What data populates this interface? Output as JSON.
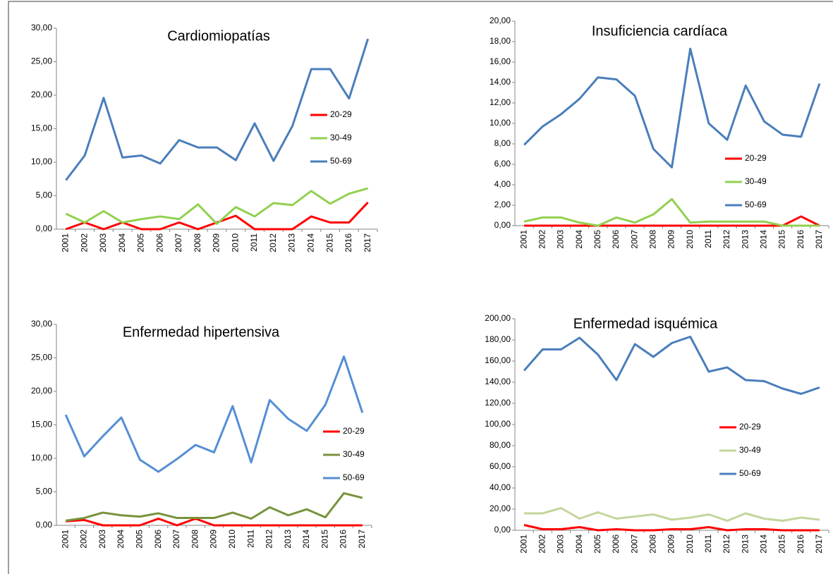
{
  "chart_data": [
    {
      "type": "line",
      "title": "Cardiomiopatías",
      "categories": [
        "2001",
        "2002",
        "2003",
        "2004",
        "2005",
        "2006",
        "2007",
        "2008",
        "2009",
        "2010",
        "2011",
        "2012",
        "2013",
        "2014",
        "2015",
        "2016",
        "2017"
      ],
      "series": [
        {
          "name": "20-29",
          "color": "#ff0000",
          "values": [
            0,
            1.0,
            0,
            1.0,
            0,
            0,
            1.0,
            0,
            1.0,
            2.0,
            0,
            0,
            0,
            1.9,
            1.0,
            1.0,
            4.0
          ]
        },
        {
          "name": "30-49",
          "color": "#92d050",
          "values": [
            2.3,
            1.0,
            2.7,
            1.0,
            1.5,
            1.9,
            1.5,
            3.7,
            0.8,
            3.3,
            1.9,
            3.9,
            3.6,
            5.7,
            3.8,
            5.3,
            6.1
          ]
        },
        {
          "name": "50-69",
          "color": "#4a7ebb",
          "values": [
            7.3,
            11.0,
            19.6,
            10.7,
            11.0,
            9.8,
            13.3,
            12.2,
            12.2,
            10.3,
            15.8,
            10.2,
            15.4,
            23.9,
            23.9,
            19.5,
            28.4
          ]
        }
      ],
      "ylim": [
        0,
        30
      ],
      "yticks": [
        {
          "value": 0,
          "label": "0,00"
        },
        {
          "value": 5,
          "label": "5,00"
        },
        {
          "value": 10,
          "label": "10,00"
        },
        {
          "value": 15,
          "label": "15,00"
        },
        {
          "value": 20,
          "label": "20,00"
        },
        {
          "value": 25,
          "label": "25,00"
        },
        {
          "value": 30,
          "label": "30,00"
        }
      ]
    },
    {
      "type": "line",
      "title": "Insuficiencia cardíaca",
      "categories": [
        "2001",
        "2002",
        "2003",
        "2004",
        "2005",
        "2006",
        "2007",
        "2008",
        "2009",
        "2010",
        "2011",
        "2012",
        "2013",
        "2014",
        "2015",
        "2016",
        "2017"
      ],
      "series": [
        {
          "name": "20-29",
          "color": "#ff0000",
          "values": [
            0,
            0,
            0,
            0,
            0,
            0,
            0,
            0,
            0,
            0,
            0,
            0,
            0,
            0,
            0,
            0.9,
            0
          ]
        },
        {
          "name": "30-49",
          "color": "#92d050",
          "values": [
            0.4,
            0.8,
            0.8,
            0.3,
            0,
            0.8,
            0.3,
            1.1,
            2.6,
            0.3,
            0.4,
            0.4,
            0.4,
            0.4,
            0,
            0,
            0
          ]
        },
        {
          "name": "50-69",
          "color": "#4a7ebb",
          "values": [
            7.9,
            9.7,
            10.9,
            12.4,
            14.5,
            14.3,
            12.7,
            7.5,
            5.7,
            17.3,
            10.0,
            8.4,
            13.7,
            10.2,
            8.9,
            8.7,
            13.9
          ]
        }
      ],
      "ylim": [
        0,
        20
      ],
      "yticks": [
        {
          "value": 0,
          "label": "0,00"
        },
        {
          "value": 2,
          "label": "2,00"
        },
        {
          "value": 4,
          "label": "4,00"
        },
        {
          "value": 6,
          "label": "6,00"
        },
        {
          "value": 8,
          "label": "8,00"
        },
        {
          "value": 10,
          "label": "10,00"
        },
        {
          "value": 12,
          "label": "12,00"
        },
        {
          "value": 14,
          "label": "14,00"
        },
        {
          "value": 16,
          "label": "16,00"
        },
        {
          "value": 18,
          "label": "18,00"
        },
        {
          "value": 20,
          "label": "20,00"
        }
      ]
    },
    {
      "type": "line",
      "title": "Enfermedad hipertensiva",
      "categories": [
        "2001",
        "2002",
        "2003",
        "2004",
        "2005",
        "2006",
        "2007",
        "2008",
        "2009",
        "2010",
        "2011",
        "2012",
        "2013",
        "2014",
        "2015",
        "2016",
        "2017"
      ],
      "series": [
        {
          "name": "20-29",
          "color": "#ff0000",
          "values": [
            0.6,
            0.8,
            0,
            0,
            0,
            1.0,
            0,
            1.0,
            0,
            0,
            0,
            0,
            0,
            0,
            0,
            0,
            0
          ]
        },
        {
          "name": "30-49",
          "color": "#77933c",
          "values": [
            0.7,
            1.1,
            1.9,
            1.5,
            1.3,
            1.8,
            1.1,
            1.1,
            1.1,
            1.9,
            1.0,
            2.7,
            1.5,
            2.4,
            1.2,
            4.8,
            4.1
          ]
        },
        {
          "name": "50-69",
          "color": "#558ed5",
          "values": [
            16.5,
            10.3,
            13.3,
            16.1,
            9.8,
            8.0,
            9.9,
            12.0,
            10.9,
            17.8,
            9.4,
            18.7,
            15.9,
            14.1,
            18.0,
            25.2,
            16.8
          ]
        }
      ],
      "ylim": [
        0,
        30
      ],
      "yticks": [
        {
          "value": 0,
          "label": "0,00"
        },
        {
          "value": 5,
          "label": "5,00"
        },
        {
          "value": 10,
          "label": "10,00"
        },
        {
          "value": 15,
          "label": "15,00"
        },
        {
          "value": 20,
          "label": "20,00"
        },
        {
          "value": 25,
          "label": "25,00"
        },
        {
          "value": 30,
          "label": "30,00"
        }
      ]
    },
    {
      "type": "line",
      "title": "Enfermedad isquémica",
      "categories": [
        "2001",
        "2002",
        "2003",
        "2004",
        "2005",
        "2006",
        "2007",
        "2008",
        "2009",
        "2010",
        "2011",
        "2012",
        "2013",
        "2014",
        "2015",
        "2016",
        "2017"
      ],
      "series": [
        {
          "name": "20-29",
          "color": "#ff0000",
          "values": [
            5,
            1,
            1,
            3,
            0,
            1,
            0,
            0,
            1,
            1,
            3,
            0,
            1,
            1,
            0,
            0,
            0
          ]
        },
        {
          "name": "30-49",
          "color": "#c3d69b",
          "values": [
            16,
            16,
            21,
            11,
            17,
            11,
            13,
            15,
            10,
            12,
            15,
            9,
            16,
            11,
            9,
            12,
            10
          ]
        },
        {
          "name": "50-69",
          "color": "#4a7ebb",
          "values": [
            151,
            171,
            171,
            182,
            166,
            142,
            176,
            164,
            177,
            183,
            150,
            154,
            142,
            141,
            134,
            129,
            135
          ]
        }
      ],
      "ylim": [
        0,
        200
      ],
      "yticks": [
        {
          "value": 0,
          "label": "0,00"
        },
        {
          "value": 20,
          "label": "20,00"
        },
        {
          "value": 40,
          "label": "40,00"
        },
        {
          "value": 60,
          "label": "60,00"
        },
        {
          "value": 80,
          "label": "80,00"
        },
        {
          "value": 100,
          "label": "100,00"
        },
        {
          "value": 120,
          "label": "120,00"
        },
        {
          "value": 140,
          "label": "140,00"
        },
        {
          "value": 160,
          "label": "160,00"
        },
        {
          "value": 180,
          "label": "180,00"
        },
        {
          "value": 200,
          "label": "200,00"
        }
      ]
    }
  ]
}
